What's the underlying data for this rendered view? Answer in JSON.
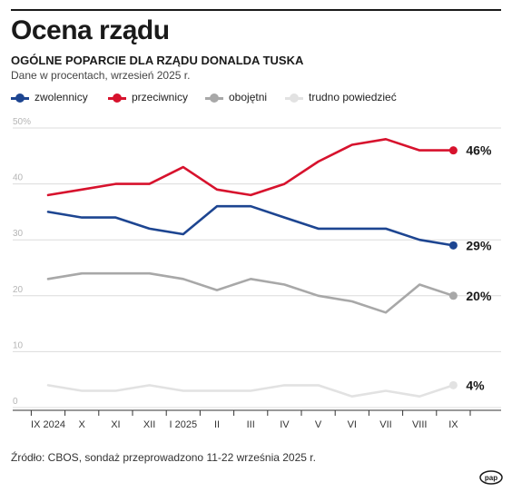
{
  "header": {
    "title": "Ocena rządu",
    "subtitle": "OGÓLNE POPARCIE DLA RZĄDU DONALDA TUSKA",
    "note": "Dane w procentach, wrzesień 2025 r."
  },
  "source": "Źródło: CBOS, sondaż przeprowadzono 11-22 września 2025 r.",
  "logo": "pap",
  "chart_data": {
    "type": "line",
    "categories": [
      "IX 2024",
      "X",
      "XI",
      "XII",
      "I 2025",
      "II",
      "III",
      "IV",
      "V",
      "VI",
      "VII",
      "VIII",
      "IX"
    ],
    "ylim": [
      0,
      50
    ],
    "yticks": [
      {
        "value": 0,
        "label": "0"
      },
      {
        "value": 10,
        "label": "10"
      },
      {
        "value": 20,
        "label": "20"
      },
      {
        "value": 30,
        "label": "30"
      },
      {
        "value": 40,
        "label": "40"
      },
      {
        "value": 50,
        "label": "50%"
      }
    ],
    "grid": true,
    "legend_position": "top-left",
    "series": [
      {
        "name": "zwolennicy",
        "color": "#1d4591",
        "values": [
          35,
          34,
          34,
          32,
          31,
          36,
          36,
          34,
          32,
          32,
          32,
          30,
          29
        ],
        "end_label": "29%"
      },
      {
        "name": "przeciwnicy",
        "color": "#d7122d",
        "values": [
          38,
          39,
          40,
          40,
          43,
          39,
          38,
          40,
          44,
          47,
          48,
          46,
          46
        ],
        "end_label": "46%"
      },
      {
        "name": "obojętni",
        "color": "#a8a8a8",
        "values": [
          23,
          24,
          24,
          24,
          23,
          21,
          23,
          22,
          20,
          19,
          17,
          22,
          20
        ],
        "end_label": "20%"
      },
      {
        "name": "trudno powiedzieć",
        "color": "#e2e2e2",
        "values": [
          4,
          3,
          3,
          4,
          3,
          3,
          3,
          4,
          4,
          2,
          3,
          2,
          4
        ],
        "end_label": "4%"
      }
    ]
  }
}
